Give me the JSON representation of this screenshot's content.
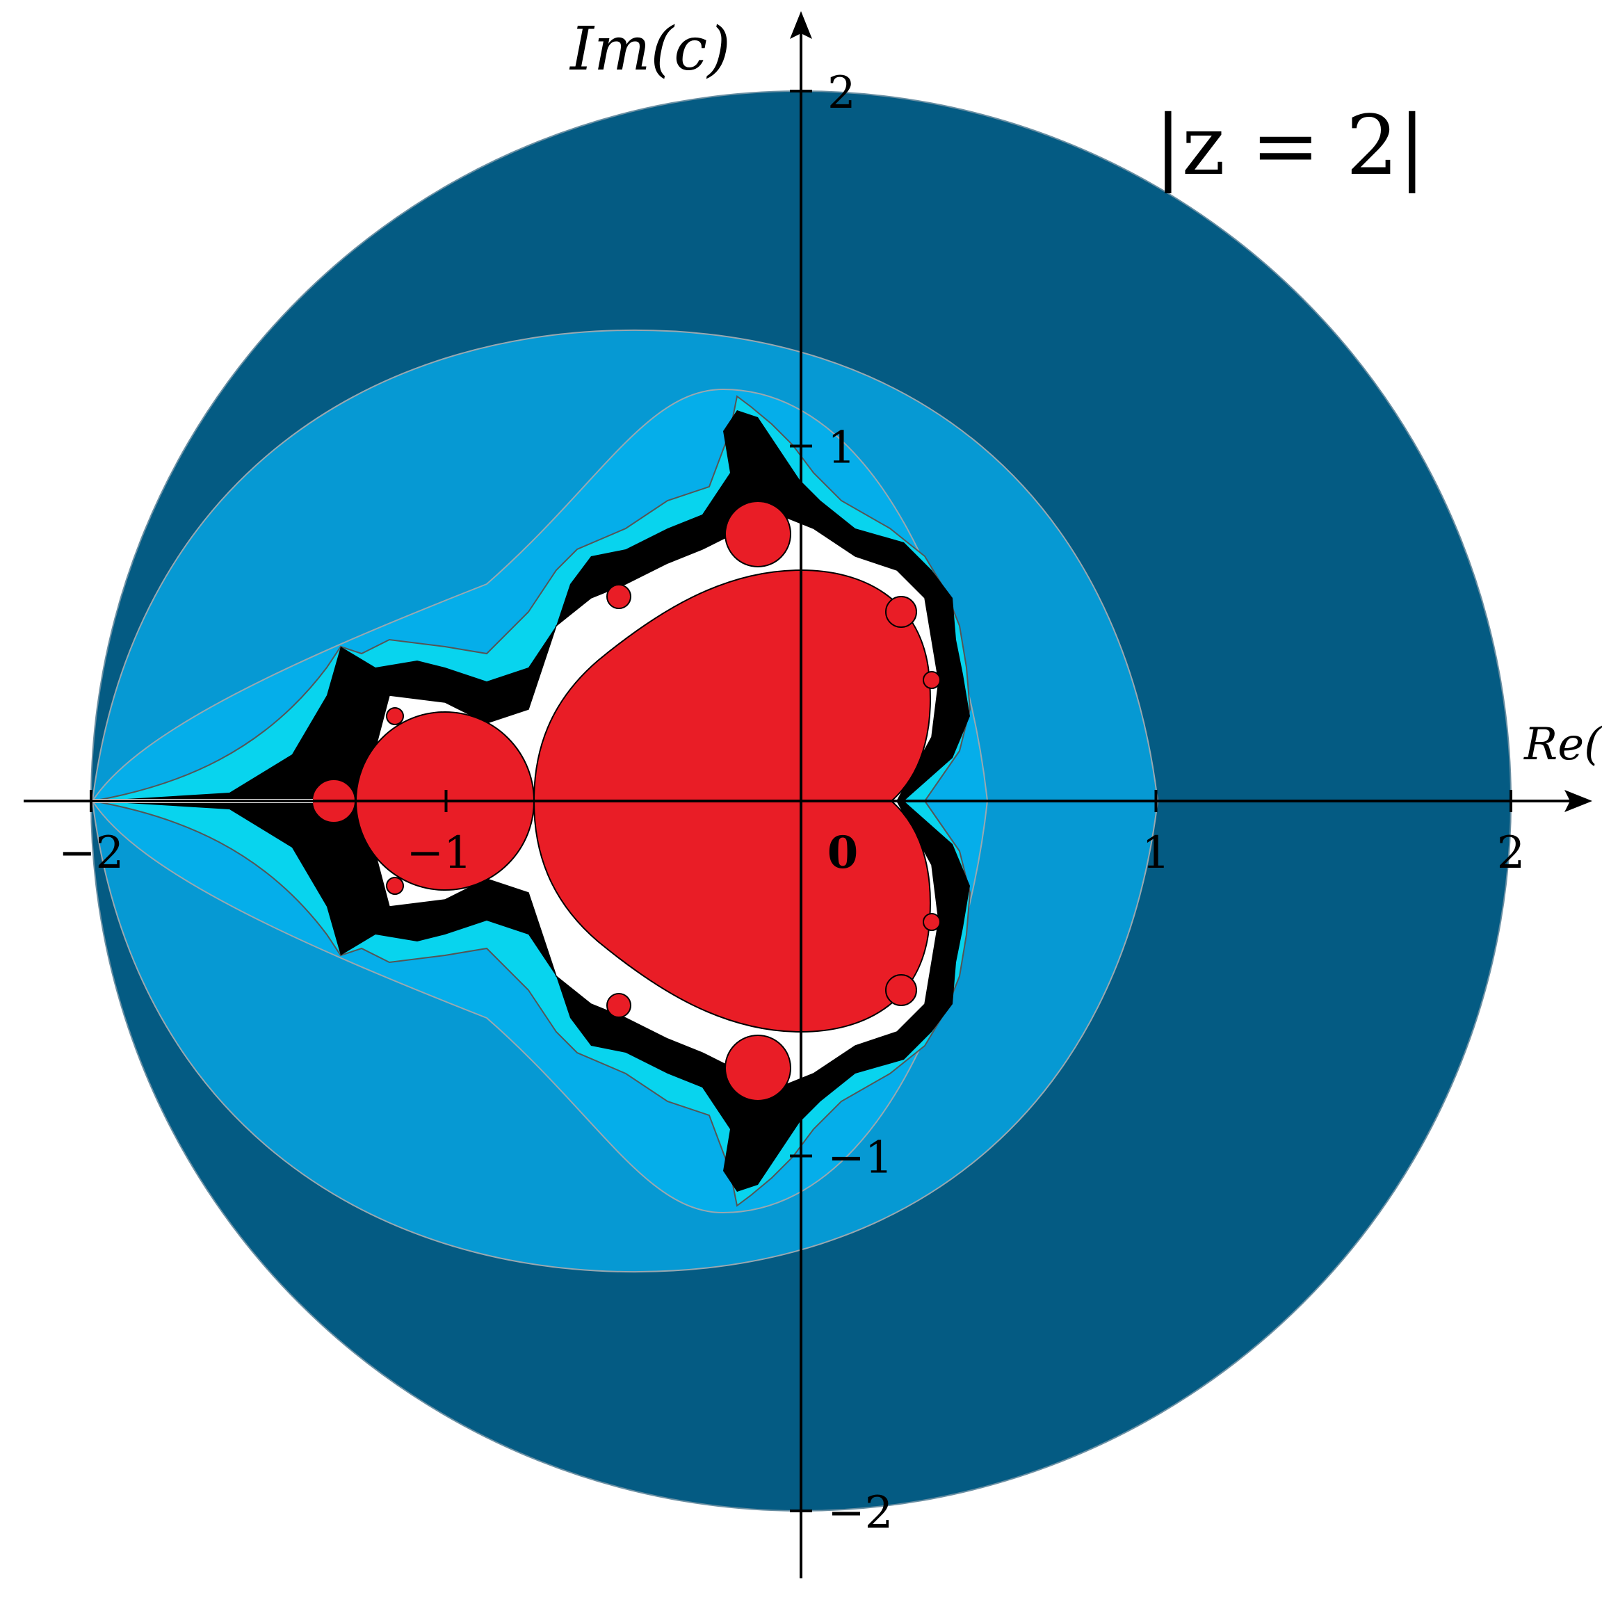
{
  "diagram": {
    "x_axis_label": "Re(c)",
    "y_axis_label": "Im(c)",
    "annotation": "|z = 2|",
    "x_ticks": [
      {
        "value": -2,
        "label": "−2"
      },
      {
        "value": -1,
        "label": "−1"
      },
      {
        "value": 0,
        "label": "0"
      },
      {
        "value": 1,
        "label": "1"
      },
      {
        "value": 2,
        "label": "2"
      }
    ],
    "y_ticks": [
      {
        "value": 2,
        "label": "2"
      },
      {
        "value": 1,
        "label": "1"
      },
      {
        "value": -1,
        "label": "−1"
      },
      {
        "value": -2,
        "label": "−2"
      }
    ],
    "escape_circle_radius": 2,
    "colors": {
      "outer_disc": "#045B83",
      "band_1": "#0699D3",
      "band_2": "#05AEEA",
      "band_3": "#08D4EE",
      "mandelbrot_set": "#E91D26",
      "boundary": "#000000",
      "contour_lines": "#808080"
    }
  }
}
